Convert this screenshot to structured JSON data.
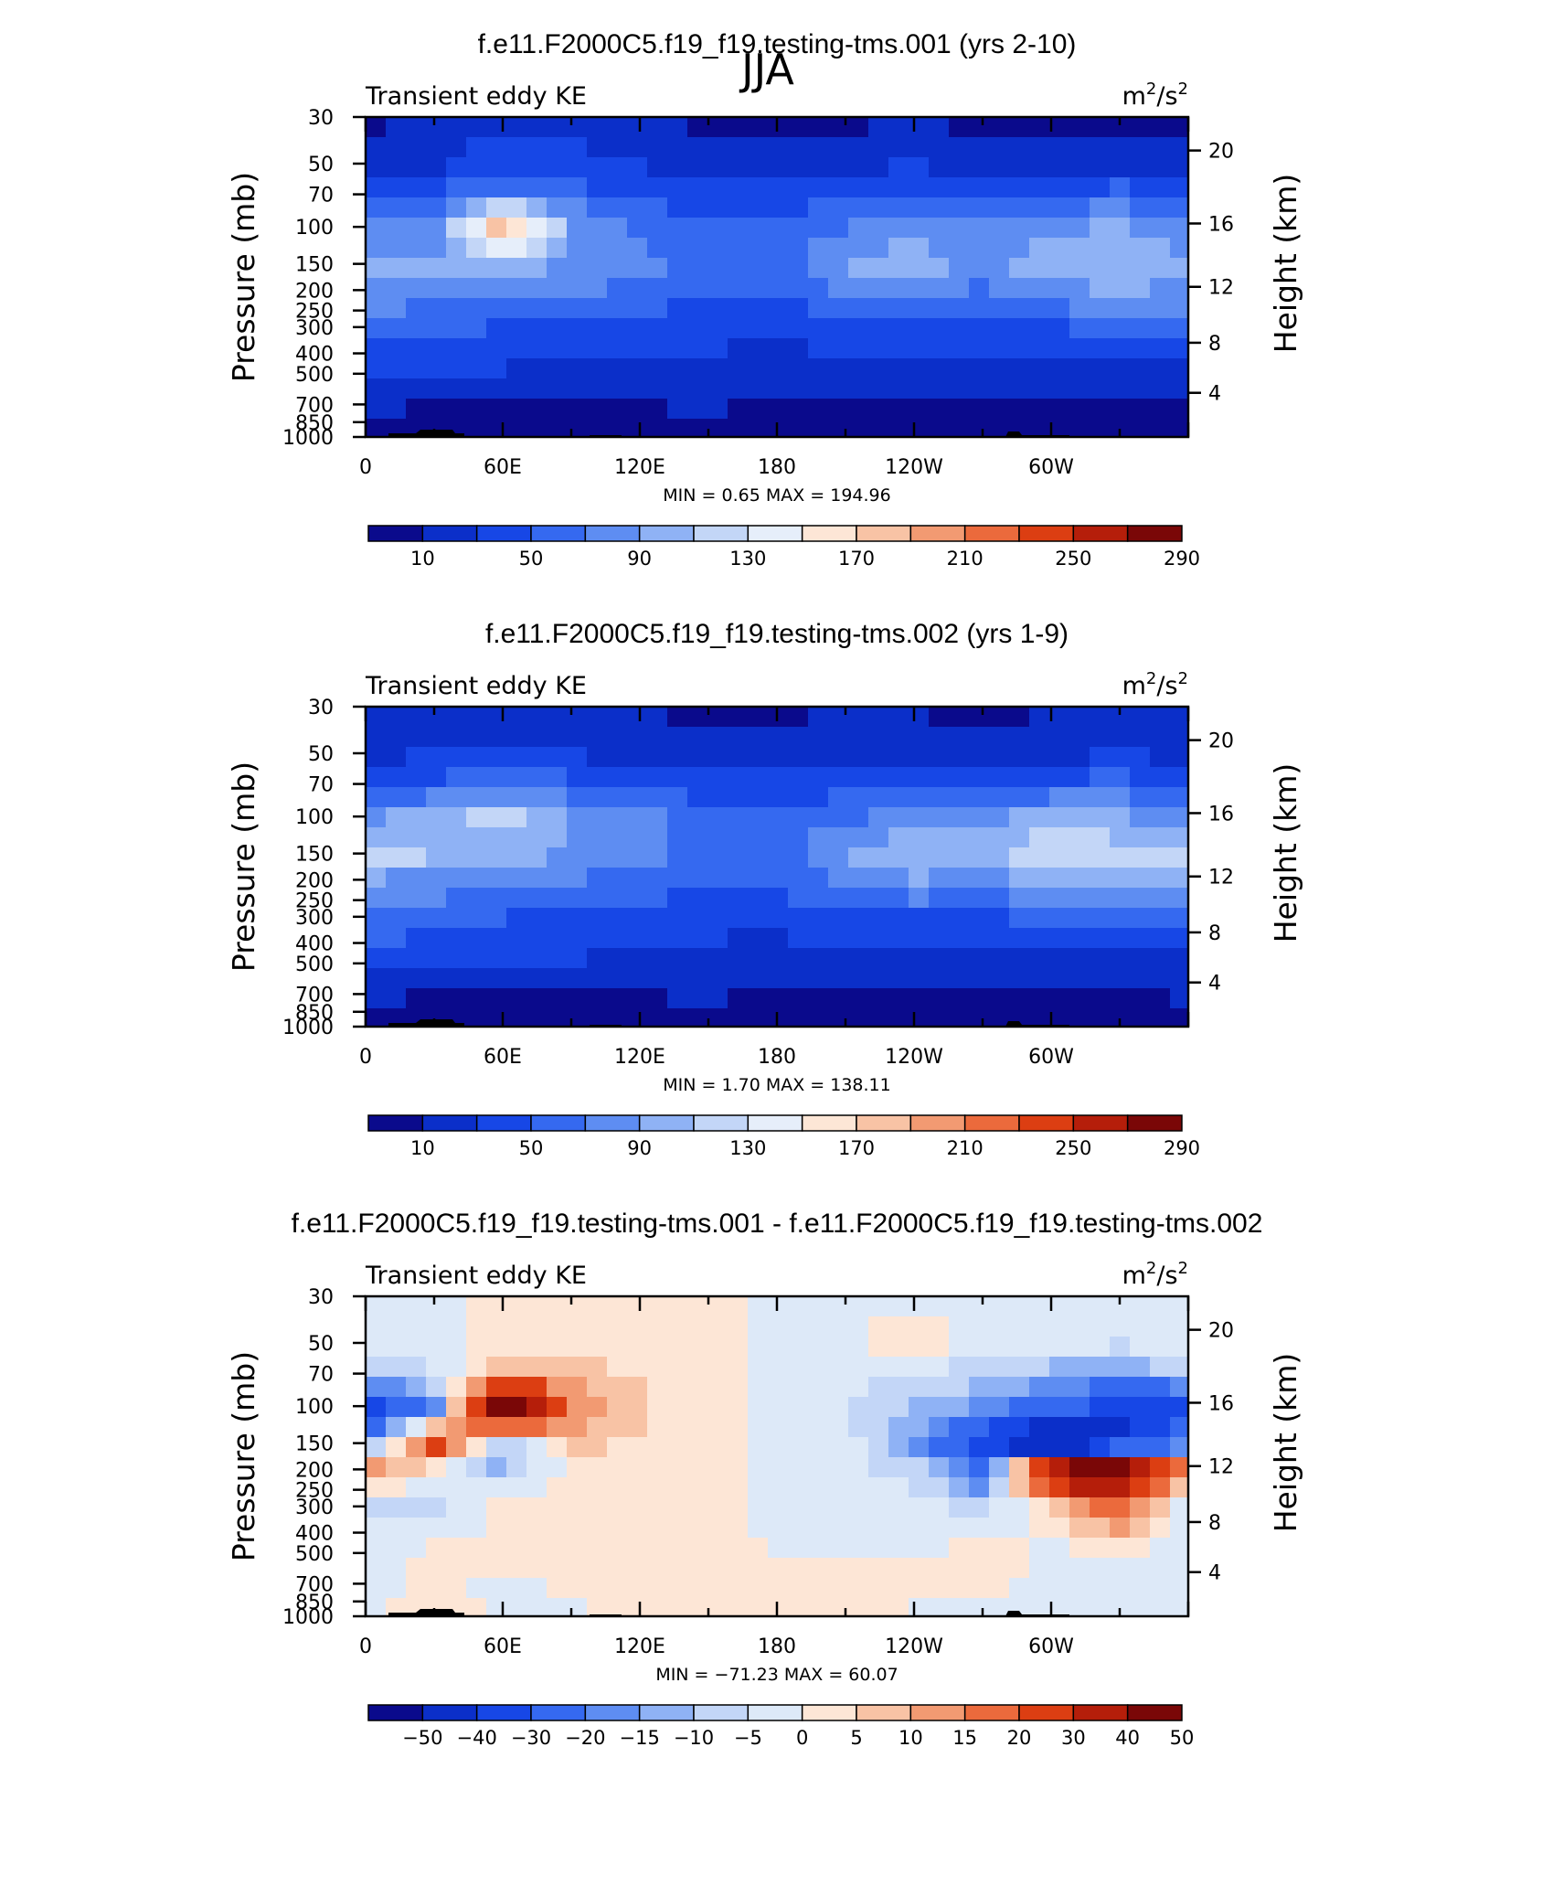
{
  "figure": {
    "title": "JJA"
  },
  "chart_data": [
    {
      "type": "heatmap",
      "title": "f.e11.F2000C5.f19_f19.testing-tms.001 (yrs 2-10)",
      "left_label": "Transient eddy KE",
      "units_base": "m",
      "units_denom": "/s",
      "units_exp": "2",
      "ylabel": "Pressure  (mb)",
      "y2label": "Height  (km)",
      "min_max_label": "MIN =     0.65   MAX =  194.96",
      "x_ticks": [
        "0",
        "60E",
        "120E",
        "180",
        "120W",
        "60W"
      ],
      "y_ticks": [
        "30",
        "50",
        "70",
        "100",
        "150",
        "200",
        "250",
        "300",
        "400",
        "500",
        "700",
        "850",
        "1000"
      ],
      "y2_ticks": [
        "20",
        "16",
        "12",
        "8",
        "4"
      ],
      "colorbar_labels": [
        "10",
        "50",
        "90",
        "130",
        "170",
        "210",
        "250",
        "290"
      ],
      "colorbar_colors": [
        "#0a0a8c",
        "#0b2fc9",
        "#1747e6",
        "#3569f0",
        "#5e8df2",
        "#8fb2f5",
        "#c3d6f7",
        "#e6eefa",
        "#fde6d6",
        "#f8c3a5",
        "#f29a72",
        "#eb6a3c",
        "#dc3e12",
        "#b51e0a",
        "#7a0707"
      ],
      "field": {
        "x_deg": [
          0,
          30,
          60,
          90,
          120,
          150,
          180,
          210,
          240,
          270,
          300,
          330,
          360
        ],
        "p_mb": [
          30,
          50,
          70,
          100,
          150,
          200,
          300,
          500,
          700,
          1000
        ],
        "values": [
          [
            5,
            12,
            25,
            20,
            12,
            6,
            5,
            5,
            8,
            5,
            5,
            6,
            5
          ],
          [
            12,
            25,
            45,
            38,
            28,
            18,
            15,
            22,
            30,
            20,
            18,
            24,
            12
          ],
          [
            40,
            55,
            75,
            60,
            45,
            42,
            38,
            45,
            50,
            48,
            50,
            60,
            40
          ],
          [
            70,
            75,
            190,
            90,
            60,
            55,
            50,
            70,
            80,
            75,
            85,
            95,
            70
          ],
          [
            100,
            95,
            105,
            85,
            80,
            60,
            58,
            95,
            105,
            85,
            100,
            110,
            100
          ],
          [
            85,
            78,
            80,
            75,
            62,
            55,
            55,
            75,
            90,
            65,
            85,
            90,
            85
          ],
          [
            60,
            55,
            50,
            48,
            40,
            38,
            35,
            45,
            45,
            45,
            50,
            55,
            60
          ],
          [
            30,
            35,
            28,
            25,
            25,
            22,
            20,
            20,
            18,
            15,
            15,
            18,
            20
          ],
          [
            12,
            10,
            8,
            8,
            10,
            12,
            8,
            6,
            5,
            5,
            5,
            6,
            10
          ],
          [
            5,
            4,
            3,
            4,
            6,
            8,
            3,
            3,
            2,
            2,
            3,
            3,
            3
          ]
        ]
      }
    },
    {
      "type": "heatmap",
      "title": "f.e11.F2000C5.f19_f19.testing-tms.002 (yrs 1-9)",
      "left_label": "Transient eddy KE",
      "units_base": "m",
      "units_denom": "/s",
      "units_exp": "2",
      "ylabel": "Pressure  (mb)",
      "y2label": "Height  (km)",
      "min_max_label": "MIN =     1.70   MAX =  138.11",
      "x_ticks": [
        "0",
        "60E",
        "120E",
        "180",
        "120W",
        "60W"
      ],
      "y_ticks": [
        "30",
        "50",
        "70",
        "100",
        "150",
        "200",
        "250",
        "300",
        "400",
        "500",
        "700",
        "850",
        "1000"
      ],
      "y2_ticks": [
        "20",
        "16",
        "12",
        "8",
        "4"
      ],
      "colorbar_labels": [
        "10",
        "50",
        "90",
        "130",
        "170",
        "210",
        "250",
        "290"
      ],
      "colorbar_colors": [
        "#0a0a8c",
        "#0b2fc9",
        "#1747e6",
        "#3569f0",
        "#5e8df2",
        "#8fb2f5",
        "#c3d6f7",
        "#e6eefa",
        "#fde6d6",
        "#f8c3a5",
        "#f29a72",
        "#eb6a3c",
        "#dc3e12",
        "#b51e0a",
        "#7a0707"
      ],
      "field": {
        "x_deg": [
          0,
          30,
          60,
          90,
          120,
          150,
          180,
          210,
          240,
          270,
          300,
          330,
          360
        ],
        "p_mb": [
          30,
          50,
          70,
          100,
          150,
          200,
          300,
          500,
          700,
          1000
        ],
        "values": [
          [
            10,
            15,
            22,
            15,
            10,
            5,
            5,
            12,
            8,
            5,
            8,
            15,
            10
          ],
          [
            25,
            30,
            35,
            30,
            18,
            15,
            14,
            25,
            22,
            18,
            22,
            30,
            25
          ],
          [
            45,
            55,
            60,
            55,
            45,
            40,
            38,
            45,
            48,
            45,
            55,
            60,
            45
          ],
          [
            85,
            95,
            120,
            90,
            75,
            55,
            50,
            65,
            78,
            85,
            95,
            90,
            85
          ],
          [
            130,
            110,
            100,
            90,
            85,
            60,
            55,
            95,
            105,
            95,
            135,
            120,
            130
          ],
          [
            90,
            82,
            75,
            70,
            62,
            55,
            52,
            80,
            90,
            80,
            100,
            95,
            90
          ],
          [
            65,
            58,
            50,
            48,
            42,
            38,
            35,
            48,
            50,
            48,
            55,
            60,
            65
          ],
          [
            35,
            38,
            28,
            28,
            26,
            22,
            20,
            22,
            20,
            18,
            20,
            22,
            25
          ],
          [
            12,
            10,
            8,
            8,
            10,
            12,
            8,
            6,
            5,
            5,
            5,
            6,
            12
          ],
          [
            6,
            5,
            3,
            4,
            6,
            8,
            3,
            3,
            2,
            2,
            3,
            3,
            4
          ]
        ]
      }
    },
    {
      "type": "heatmap",
      "title": "f.e11.F2000C5.f19_f19.testing-tms.001 - f.e11.F2000C5.f19_f19.testing-tms.002",
      "left_label": "Transient eddy KE",
      "units_base": "m",
      "units_denom": "/s",
      "units_exp": "2",
      "ylabel": "Pressure  (mb)",
      "y2label": "Height  (km)",
      "min_max_label": "MIN =  −71.23   MAX =    60.07",
      "x_ticks": [
        "0",
        "60E",
        "120E",
        "180",
        "120W",
        "60W"
      ],
      "y_ticks": [
        "30",
        "50",
        "70",
        "100",
        "150",
        "200",
        "250",
        "300",
        "400",
        "500",
        "700",
        "850",
        "1000"
      ],
      "y2_ticks": [
        "20",
        "16",
        "12",
        "8",
        "4"
      ],
      "colorbar_labels": [
        "−50",
        "−40",
        "−30",
        "−20",
        "−15",
        "−10",
        "−5",
        "0",
        "5",
        "10",
        "15",
        "20",
        "30",
        "40",
        "50"
      ],
      "colorbar_colors": [
        "#0a0a8c",
        "#0b2fc9",
        "#1747e6",
        "#3569f0",
        "#5e8df2",
        "#8fb2f5",
        "#c3d6f7",
        "#dde9f8",
        "#fde6d6",
        "#f8c3a5",
        "#f29a72",
        "#eb6a3c",
        "#dc3e12",
        "#b51e0a",
        "#7a0707"
      ],
      "field": {
        "x_deg": [
          0,
          30,
          60,
          90,
          120,
          150,
          180,
          210,
          240,
          270,
          300,
          330,
          360
        ],
        "p_mb": [
          30,
          50,
          70,
          100,
          150,
          200,
          300,
          500,
          700,
          1000
        ],
        "values": [
          [
            -2,
            -2,
            2,
            3,
            2,
            2,
            -1,
            -2,
            -1,
            -1,
            -2,
            -1,
            -2
          ],
          [
            -3,
            -2,
            3,
            4,
            3,
            2,
            -1,
            -2,
            4,
            -2,
            -3,
            -4,
            -3
          ],
          [
            -8,
            -5,
            10,
            8,
            4,
            2,
            -1,
            -3,
            -5,
            -8,
            -12,
            -15,
            -8
          ],
          [
            -35,
            -20,
            60,
            15,
            6,
            2,
            -1,
            -5,
            -10,
            -15,
            -25,
            -35,
            -35
          ],
          [
            -20,
            30,
            -10,
            8,
            4,
            1,
            -1,
            -3,
            -15,
            -35,
            -65,
            -45,
            -20
          ],
          [
            15,
            2,
            -12,
            2,
            3,
            1,
            -1,
            -2,
            -8,
            -25,
            45,
            55,
            15
          ],
          [
            -5,
            -8,
            2,
            2,
            2,
            1,
            -1,
            -1,
            -3,
            -8,
            5,
            20,
            -5
          ],
          [
            -2,
            1,
            3,
            1,
            2,
            1,
            0,
            -1,
            -1,
            2,
            -1,
            -1,
            -2
          ],
          [
            -1,
            1,
            -1,
            1,
            1,
            1,
            1,
            1,
            2,
            1,
            -1,
            -1,
            -1
          ],
          [
            -1,
            2,
            -1,
            -1,
            1,
            1,
            1,
            1,
            -1,
            -1,
            -1,
            -1,
            -1
          ]
        ]
      }
    }
  ]
}
